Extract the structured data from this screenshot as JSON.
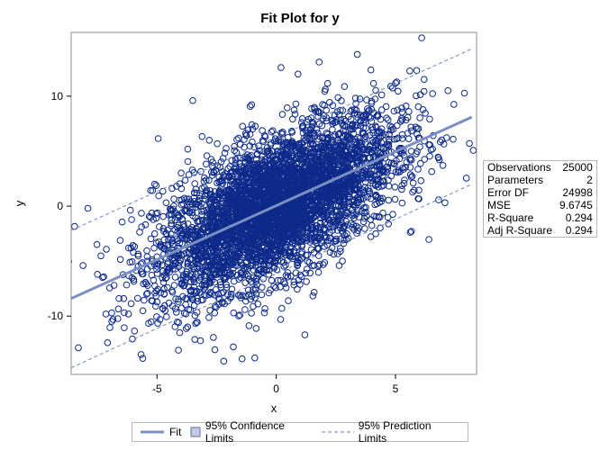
{
  "chart_data": {
    "type": "scatter",
    "title": "Fit Plot for y",
    "xlabel": "x",
    "ylabel": "y",
    "xlim": [
      -8.6,
      8.4
    ],
    "ylim": [
      -15.3,
      15.8
    ],
    "xticks": [
      "-5",
      "0",
      "5"
    ],
    "xtick_values": [
      -5,
      0,
      5
    ],
    "yticks": [
      "-10",
      "0",
      "10"
    ],
    "ytick_values": [
      -10,
      0,
      10
    ],
    "fit_line": {
      "x": [
        -8.6,
        8.2
      ],
      "y": [
        -8.4,
        8.1
      ]
    },
    "prediction_limits": {
      "lower": {
        "x": [
          -8.6,
          8.2
        ],
        "y": [
          -14.7,
          2.0
        ]
      },
      "upper": {
        "x": [
          -8.6,
          8.2
        ],
        "y": [
          -2.2,
          14.3
        ]
      }
    },
    "scatter_summary": {
      "n": 25000,
      "x_mean": 0,
      "x_sd": 2.5,
      "y_sd": 3.7,
      "slope": 0.99
    },
    "outlier_points": [
      {
        "x": 6.1,
        "y": 15.3
      },
      {
        "x": 3.4,
        "y": 13.8
      },
      {
        "x": 1.8,
        "y": 13.1
      },
      {
        "x": -7.9,
        "y": -0.2
      },
      {
        "x": -8.1,
        "y": -5.4
      },
      {
        "x": -5.1,
        "y": 2.0
      },
      {
        "x": 7.2,
        "y": 10.5
      },
      {
        "x": 8.1,
        "y": 5.7
      },
      {
        "x": -0.9,
        "y": -13.8
      },
      {
        "x": -2.2,
        "y": -14.1
      },
      {
        "x": -4.1,
        "y": -13.1
      },
      {
        "x": 1.2,
        "y": -11.7
      },
      {
        "x": -6.8,
        "y": -7.2
      },
      {
        "x": -3.5,
        "y": 9.6
      },
      {
        "x": 5.6,
        "y": 12.3
      },
      {
        "x": 0.2,
        "y": 12.6
      },
      {
        "x": -1.8,
        "y": -12.8
      },
      {
        "x": 4.8,
        "y": 10.9
      }
    ],
    "legend_position": "bottom",
    "colors": {
      "points": "#0d2a8a",
      "fit": "#7a8fc2",
      "prediction": "#6f86bf",
      "frame": "#8c8c8c"
    }
  },
  "stats": [
    {
      "label": "Observations",
      "value": "25000"
    },
    {
      "label": "Parameters",
      "value": "2"
    },
    {
      "label": "Error DF",
      "value": "24998"
    },
    {
      "label": "MSE",
      "value": "9.6745"
    },
    {
      "label": "R-Square",
      "value": "0.294"
    },
    {
      "label": "Adj R-Square",
      "value": "0.294"
    }
  ],
  "legend": {
    "fit": "Fit",
    "confidence": "95% Confidence Limits",
    "prediction": "95% Prediction Limits"
  }
}
